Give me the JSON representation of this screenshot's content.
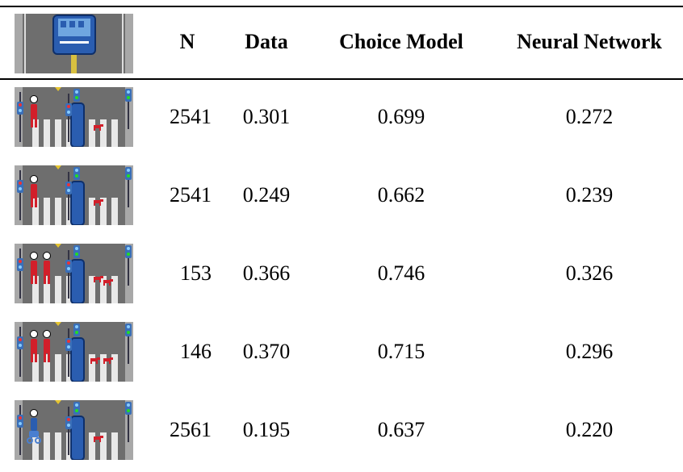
{
  "table": {
    "header": [
      "N",
      "Data",
      "Choice Model",
      "Neural Network"
    ],
    "rows": [
      [
        "2541",
        "0.301",
        "0.699",
        "0.272"
      ],
      [
        "2541",
        "0.249",
        "0.662",
        "0.239"
      ],
      [
        "153",
        "0.366",
        "0.746",
        "0.326"
      ],
      [
        "146",
        "0.370",
        "0.715",
        "0.296"
      ],
      [
        "2561",
        "0.195",
        "0.637",
        "0.220"
      ]
    ]
  }
}
